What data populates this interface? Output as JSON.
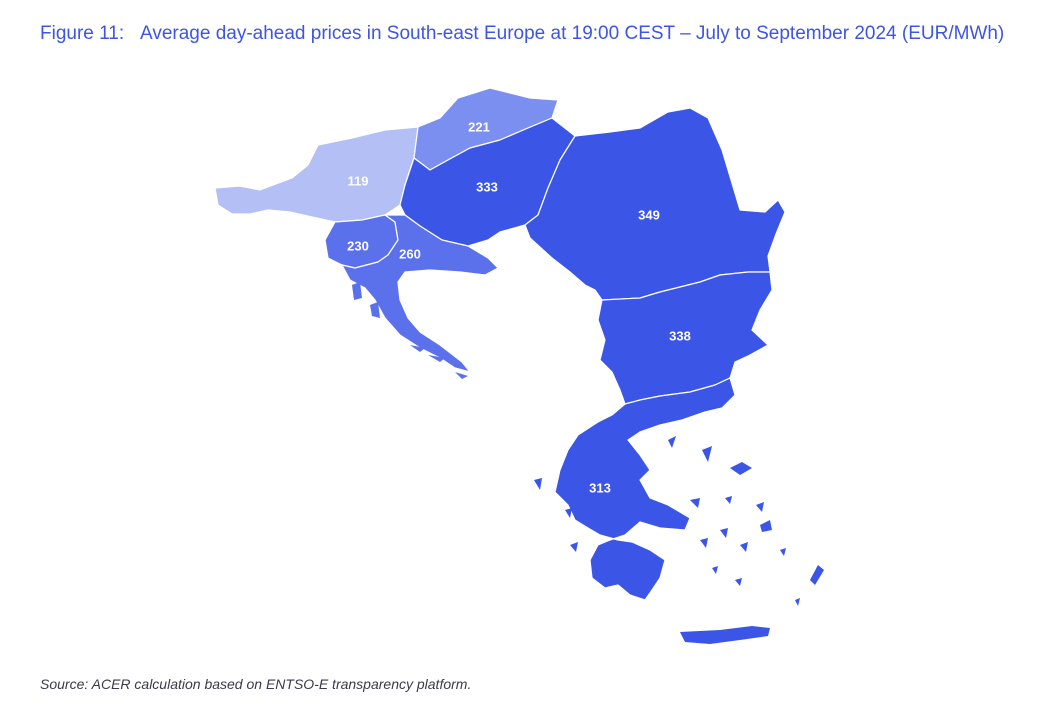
{
  "figure": {
    "label": "Figure 11:",
    "title": "Average day-ahead prices in South-east Europe at 19:00 CEST – July to September 2024 (EUR/MWh)"
  },
  "source": "Source: ACER calculation based on ENTSO-E transparency platform.",
  "colors": {
    "very_light": "#b3bff5",
    "light": "#7b8ff0",
    "medium": "#5b70eb",
    "dark": "#3b55e6",
    "border": "#ffffff",
    "title": "#3d55e6"
  },
  "regions": [
    {
      "id": "austria",
      "value": "119",
      "color_level": "very_light"
    },
    {
      "id": "slovakia",
      "value": "221",
      "color_level": "light"
    },
    {
      "id": "hungary",
      "value": "333",
      "color_level": "dark"
    },
    {
      "id": "romania",
      "value": "349",
      "color_level": "dark"
    },
    {
      "id": "slovenia",
      "value": "230",
      "color_level": "medium"
    },
    {
      "id": "croatia",
      "value": "260",
      "color_level": "medium"
    },
    {
      "id": "bulgaria",
      "value": "338",
      "color_level": "dark"
    },
    {
      "id": "greece",
      "value": "313",
      "color_level": "dark"
    }
  ]
}
